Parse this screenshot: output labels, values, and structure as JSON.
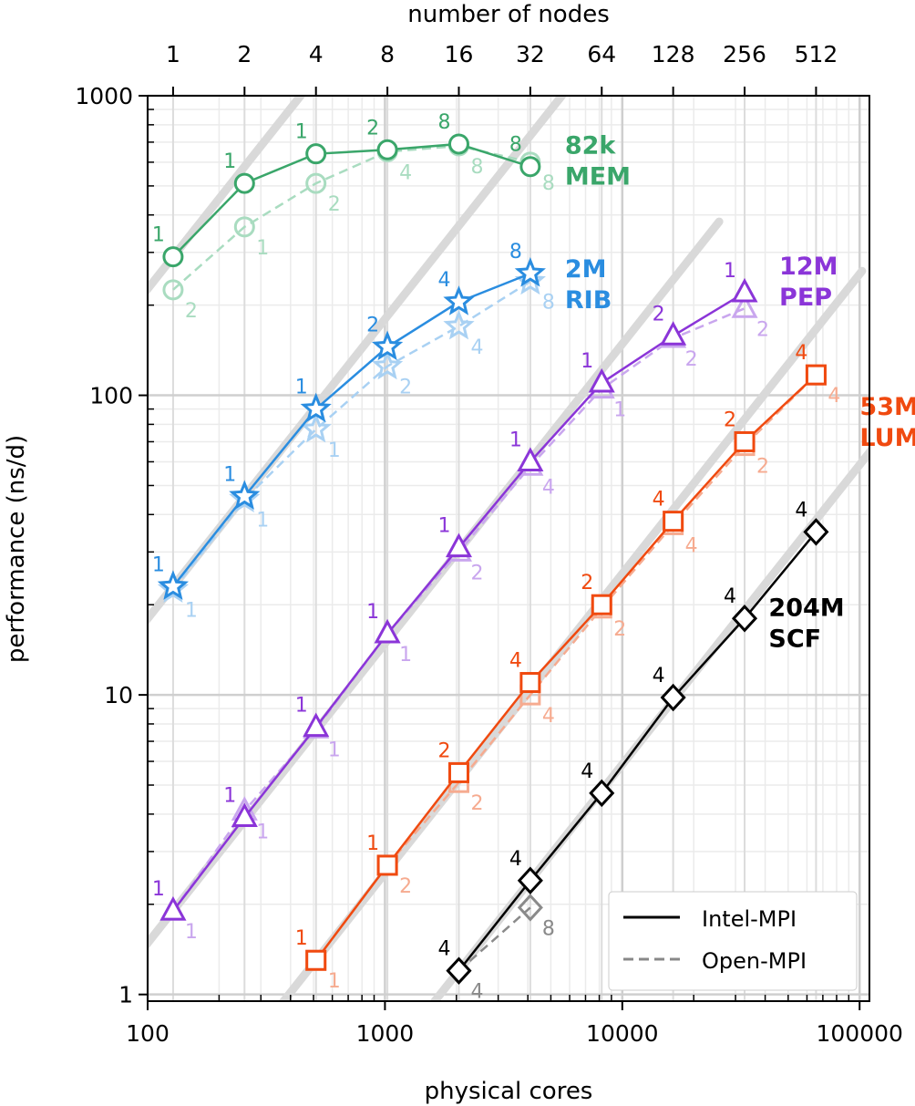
{
  "chart_data": {
    "type": "line",
    "xlabel": "physical cores",
    "ylabel": "performance (ns/d)",
    "top_xlabel": "number of nodes",
    "xscale": "log",
    "yscale": "log",
    "xlim": [
      100,
      110000
    ],
    "ylim": [
      0.95,
      1000
    ],
    "x_ticks": [
      100,
      1000,
      10000,
      100000
    ],
    "x_tick_labels": [
      "100",
      "1000",
      "10000",
      "100000"
    ],
    "y_ticks": [
      1,
      10,
      100,
      1000
    ],
    "y_tick_labels": [
      "1",
      "10",
      "100",
      "1000"
    ],
    "top_ticks_cores": [
      128,
      256,
      512,
      1024,
      2048,
      4096,
      8192,
      16384,
      32768,
      65536
    ],
    "top_tick_labels": [
      "1",
      "2",
      "4",
      "8",
      "16",
      "32",
      "64",
      "128",
      "256",
      "512"
    ],
    "grid": true,
    "legend": {
      "position": "bottom-right",
      "entries": [
        {
          "label": "Intel-MPI",
          "style": "solid",
          "color": "#000000"
        },
        {
          "label": "Open-MPI",
          "style": "dashed",
          "color": "#888888"
        }
      ]
    },
    "systems": [
      {
        "name_line1": "82k",
        "name_line2": "MEM",
        "color": "#3aa66a",
        "light_color": "#a9dcc0",
        "marker": "circle",
        "intel": {
          "x": [
            128,
            256,
            512,
            1024,
            2048,
            4096
          ],
          "y": [
            290,
            510,
            640,
            660,
            690,
            580
          ],
          "labels": [
            "1",
            "1",
            "1",
            "2",
            "8",
            "8"
          ]
        },
        "open": {
          "x": [
            128,
            256,
            512,
            1024,
            2048,
            4096
          ],
          "y": [
            225,
            365,
            510,
            650,
            680,
            600
          ],
          "labels": [
            "2",
            "1",
            "2",
            "4",
            "8",
            "8"
          ]
        }
      },
      {
        "name_line1": "2M",
        "name_line2": "RIB",
        "color": "#2a8de0",
        "light_color": "#a9d1f3",
        "marker": "star",
        "intel": {
          "x": [
            128,
            256,
            512,
            1024,
            2048,
            4096
          ],
          "y": [
            23,
            46,
            90,
            145,
            205,
            255
          ],
          "labels": [
            "1",
            "1",
            "1",
            "2",
            "4",
            "8"
          ]
        },
        "open": {
          "x": [
            128,
            256,
            512,
            1024,
            2048,
            4096
          ],
          "y": [
            22.5,
            45,
            77,
            125,
            170,
            240
          ],
          "labels": [
            "1",
            "1",
            "1",
            "2",
            "4",
            "8"
          ]
        }
      },
      {
        "name_line1": "12M",
        "name_line2": "PEP",
        "color": "#8b35d8",
        "light_color": "#c9a6ee",
        "marker": "triangle",
        "intel": {
          "x": [
            128,
            256,
            512,
            1024,
            2048,
            4096,
            8192,
            16384,
            32768
          ],
          "y": [
            1.9,
            3.9,
            7.8,
            16,
            31,
            60,
            110,
            158,
            220
          ],
          "labels": [
            "1",
            "1",
            "1",
            "1",
            "1",
            "1",
            "1",
            "2",
            "1"
          ]
        },
        "open": {
          "x": [
            128,
            256,
            512,
            1024,
            2048,
            4096,
            8192,
            16384,
            32768
          ],
          "y": [
            1.9,
            4.1,
            7.7,
            16,
            30,
            58,
            105,
            155,
            195
          ],
          "labels": [
            "1",
            "1",
            "1",
            "1",
            "2",
            "4",
            "1",
            "2",
            "2"
          ]
        }
      },
      {
        "name_line1": "53M",
        "name_line2": "LUM",
        "color": "#f04a10",
        "light_color": "#f6ab90",
        "marker": "square",
        "intel": {
          "x": [
            512,
            1024,
            2048,
            4096,
            8192,
            16384,
            32768,
            65536
          ],
          "y": [
            1.3,
            2.7,
            5.5,
            11,
            20,
            38,
            70,
            117
          ],
          "labels": [
            "1",
            "1",
            "2",
            "4",
            "2",
            "4",
            "2",
            "4"
          ]
        },
        "open": {
          "x": [
            512,
            1024,
            2048,
            4096,
            8192,
            16384,
            32768,
            65536
          ],
          "y": [
            1.3,
            2.7,
            5.1,
            10,
            19.5,
            37,
            68,
            117
          ],
          "labels": [
            "1",
            "2",
            "2",
            "4",
            "2",
            "4",
            "2",
            "4"
          ]
        }
      },
      {
        "name_line1": "204M",
        "name_line2": "SCF",
        "color": "#000000",
        "light_color": "#8a8a8a",
        "marker": "diamond",
        "intel": {
          "x": [
            2048,
            4096,
            8192,
            16384,
            32768,
            65536
          ],
          "y": [
            1.2,
            2.4,
            4.7,
            9.8,
            18,
            35
          ],
          "labels": [
            "4",
            "4",
            "4",
            "4",
            "4",
            "4"
          ]
        },
        "open": {
          "x": [
            2048,
            4096
          ],
          "y": [
            1.2,
            1.95
          ],
          "labels": [
            "4",
            "8"
          ]
        }
      }
    ]
  }
}
